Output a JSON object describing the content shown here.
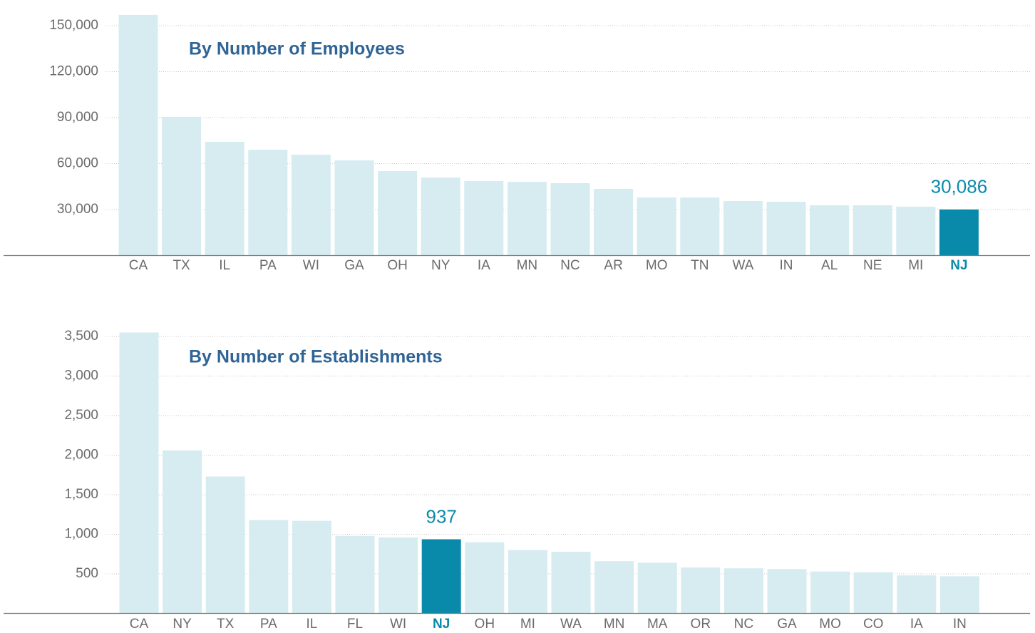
{
  "chart_data": [
    {
      "type": "bar",
      "title": "By Number of Employees",
      "categories": [
        "CA",
        "TX",
        "IL",
        "PA",
        "WI",
        "GA",
        "OH",
        "NY",
        "IA",
        "MN",
        "NC",
        "AR",
        "MO",
        "TN",
        "WA",
        "IN",
        "AL",
        "NE",
        "MI",
        "NJ"
      ],
      "values": [
        157000,
        90500,
        74200,
        69000,
        65800,
        62100,
        55100,
        50900,
        48600,
        48100,
        47200,
        43500,
        37900,
        37900,
        35600,
        35100,
        32800,
        32800,
        31900,
        30086
      ],
      "value_labels": [
        null,
        null,
        null,
        null,
        null,
        null,
        null,
        null,
        null,
        null,
        null,
        null,
        null,
        null,
        null,
        null,
        null,
        null,
        null,
        "30,086"
      ],
      "bar_colors": [
        "#d6ecf0",
        "#d6ecf0",
        "#d6ecf0",
        "#d6ecf0",
        "#d6ecf0",
        "#d6ecf0",
        "#d6ecf0",
        "#d6ecf0",
        "#d6ecf0",
        "#d6ecf0",
        "#d6ecf0",
        "#d6ecf0",
        "#d6ecf0",
        "#d6ecf0",
        "#d6ecf0",
        "#d6ecf0",
        "#d6ecf0",
        "#d6ecf0",
        "#d6ecf0",
        "#0a8aaa"
      ],
      "ylim": [
        0,
        160000
      ],
      "yticks": [
        {
          "value": 30000,
          "label": "30,000"
        },
        {
          "value": 60000,
          "label": "60,000"
        },
        {
          "value": 90000,
          "label": "90,000"
        },
        {
          "value": 120000,
          "label": "120,000"
        },
        {
          "value": 150000,
          "label": "150,000"
        }
      ],
      "grid": true
    },
    {
      "type": "bar",
      "title": "By Number of Establishments",
      "categories": [
        "CA",
        "NY",
        "TX",
        "PA",
        "IL",
        "FL",
        "WI",
        "NJ",
        "OH",
        "MI",
        "WA",
        "MN",
        "MA",
        "OR",
        "NC",
        "GA",
        "MO",
        "CO",
        "IA",
        "IN"
      ],
      "values": [
        3550,
        2060,
        1730,
        1180,
        1170,
        980,
        960,
        937,
        900,
        800,
        780,
        660,
        640,
        580,
        570,
        560,
        530,
        520,
        480,
        470
      ],
      "value_labels": [
        null,
        null,
        null,
        null,
        null,
        null,
        null,
        "937",
        null,
        null,
        null,
        null,
        null,
        null,
        null,
        null,
        null,
        null,
        null,
        null
      ],
      "bar_colors": [
        "#d6ecf0",
        "#d6ecf0",
        "#d6ecf0",
        "#d6ecf0",
        "#d6ecf0",
        "#d6ecf0",
        "#d6ecf0",
        "#0a8aaa",
        "#d6ecf0",
        "#d6ecf0",
        "#d6ecf0",
        "#d6ecf0",
        "#d6ecf0",
        "#d6ecf0",
        "#d6ecf0",
        "#d6ecf0",
        "#d6ecf0",
        "#d6ecf0",
        "#d6ecf0",
        "#d6ecf0"
      ],
      "ylim": [
        0,
        3600
      ],
      "yticks": [
        500,
        {
          "value": 1000,
          "label": "1,000"
        },
        {
          "value": 1500,
          "label": "1,500"
        },
        {
          "value": 2000,
          "label": "2,000"
        },
        {
          "value": 2500,
          "label": "2,500"
        },
        {
          "value": 3000,
          "label": "3,000"
        },
        {
          "value": 3500,
          "label": "3,500"
        }
      ],
      "grid": true
    }
  ]
}
